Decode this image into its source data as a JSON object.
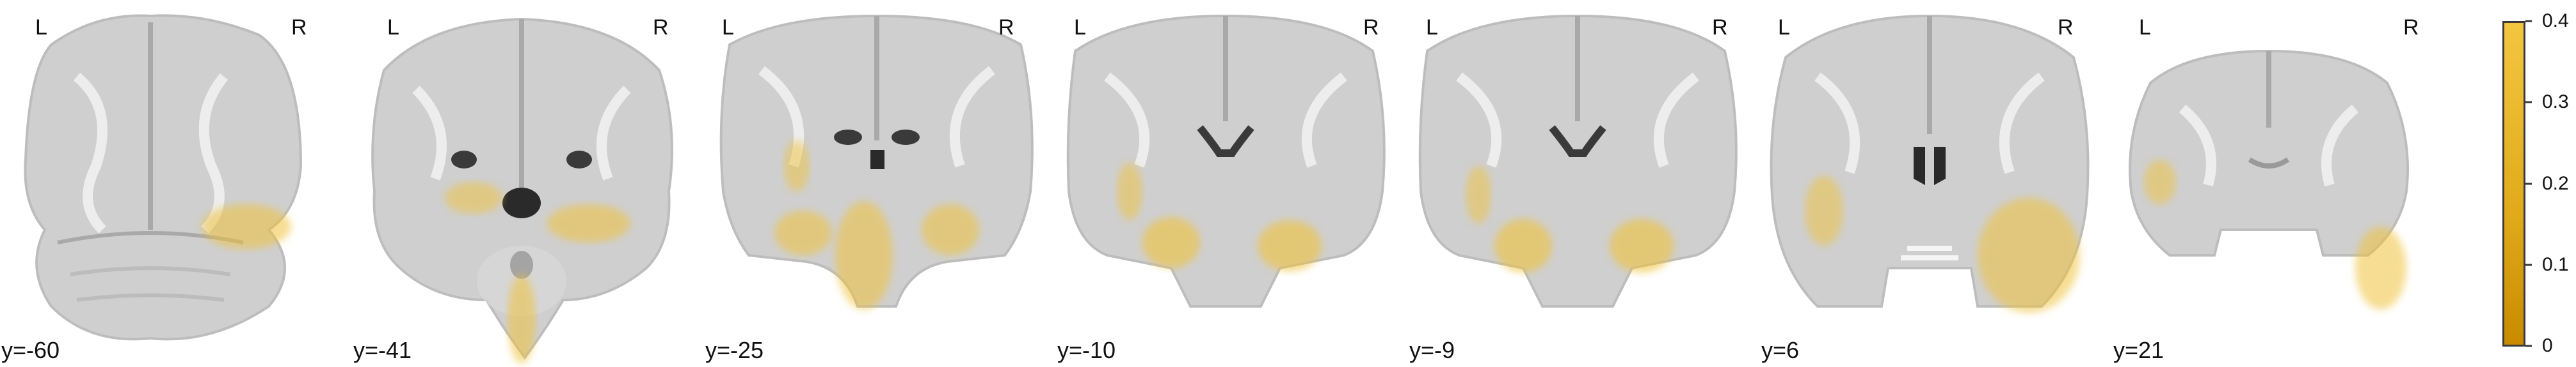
{
  "panels": [
    {
      "left_label": "L",
      "right_label": "R",
      "coord": "y=-60"
    },
    {
      "left_label": "L",
      "right_label": "R",
      "coord": "y=-41"
    },
    {
      "left_label": "L",
      "right_label": "R",
      "coord": "y=-25"
    },
    {
      "left_label": "L",
      "right_label": "R",
      "coord": "y=-10"
    },
    {
      "left_label": "L",
      "right_label": "R",
      "coord": "y=-9"
    },
    {
      "left_label": "L",
      "right_label": "R",
      "coord": "y=6"
    },
    {
      "left_label": "L",
      "right_label": "R",
      "coord": "y=21"
    }
  ],
  "colorbar": {
    "ticks": [
      "0.4",
      "0.3",
      "0.2",
      "0.1",
      "0"
    ],
    "colors": {
      "low": "#c98a00",
      "mid": "#e0aa1a",
      "high": "#f3c640"
    }
  },
  "colors": {
    "overlay": "#f0c23a",
    "brain_light": "#d4d4d4",
    "brain_mid": "#b9b9b9",
    "brain_dark": "#9a9a9a",
    "ventricle": "#3a3a3a"
  }
}
